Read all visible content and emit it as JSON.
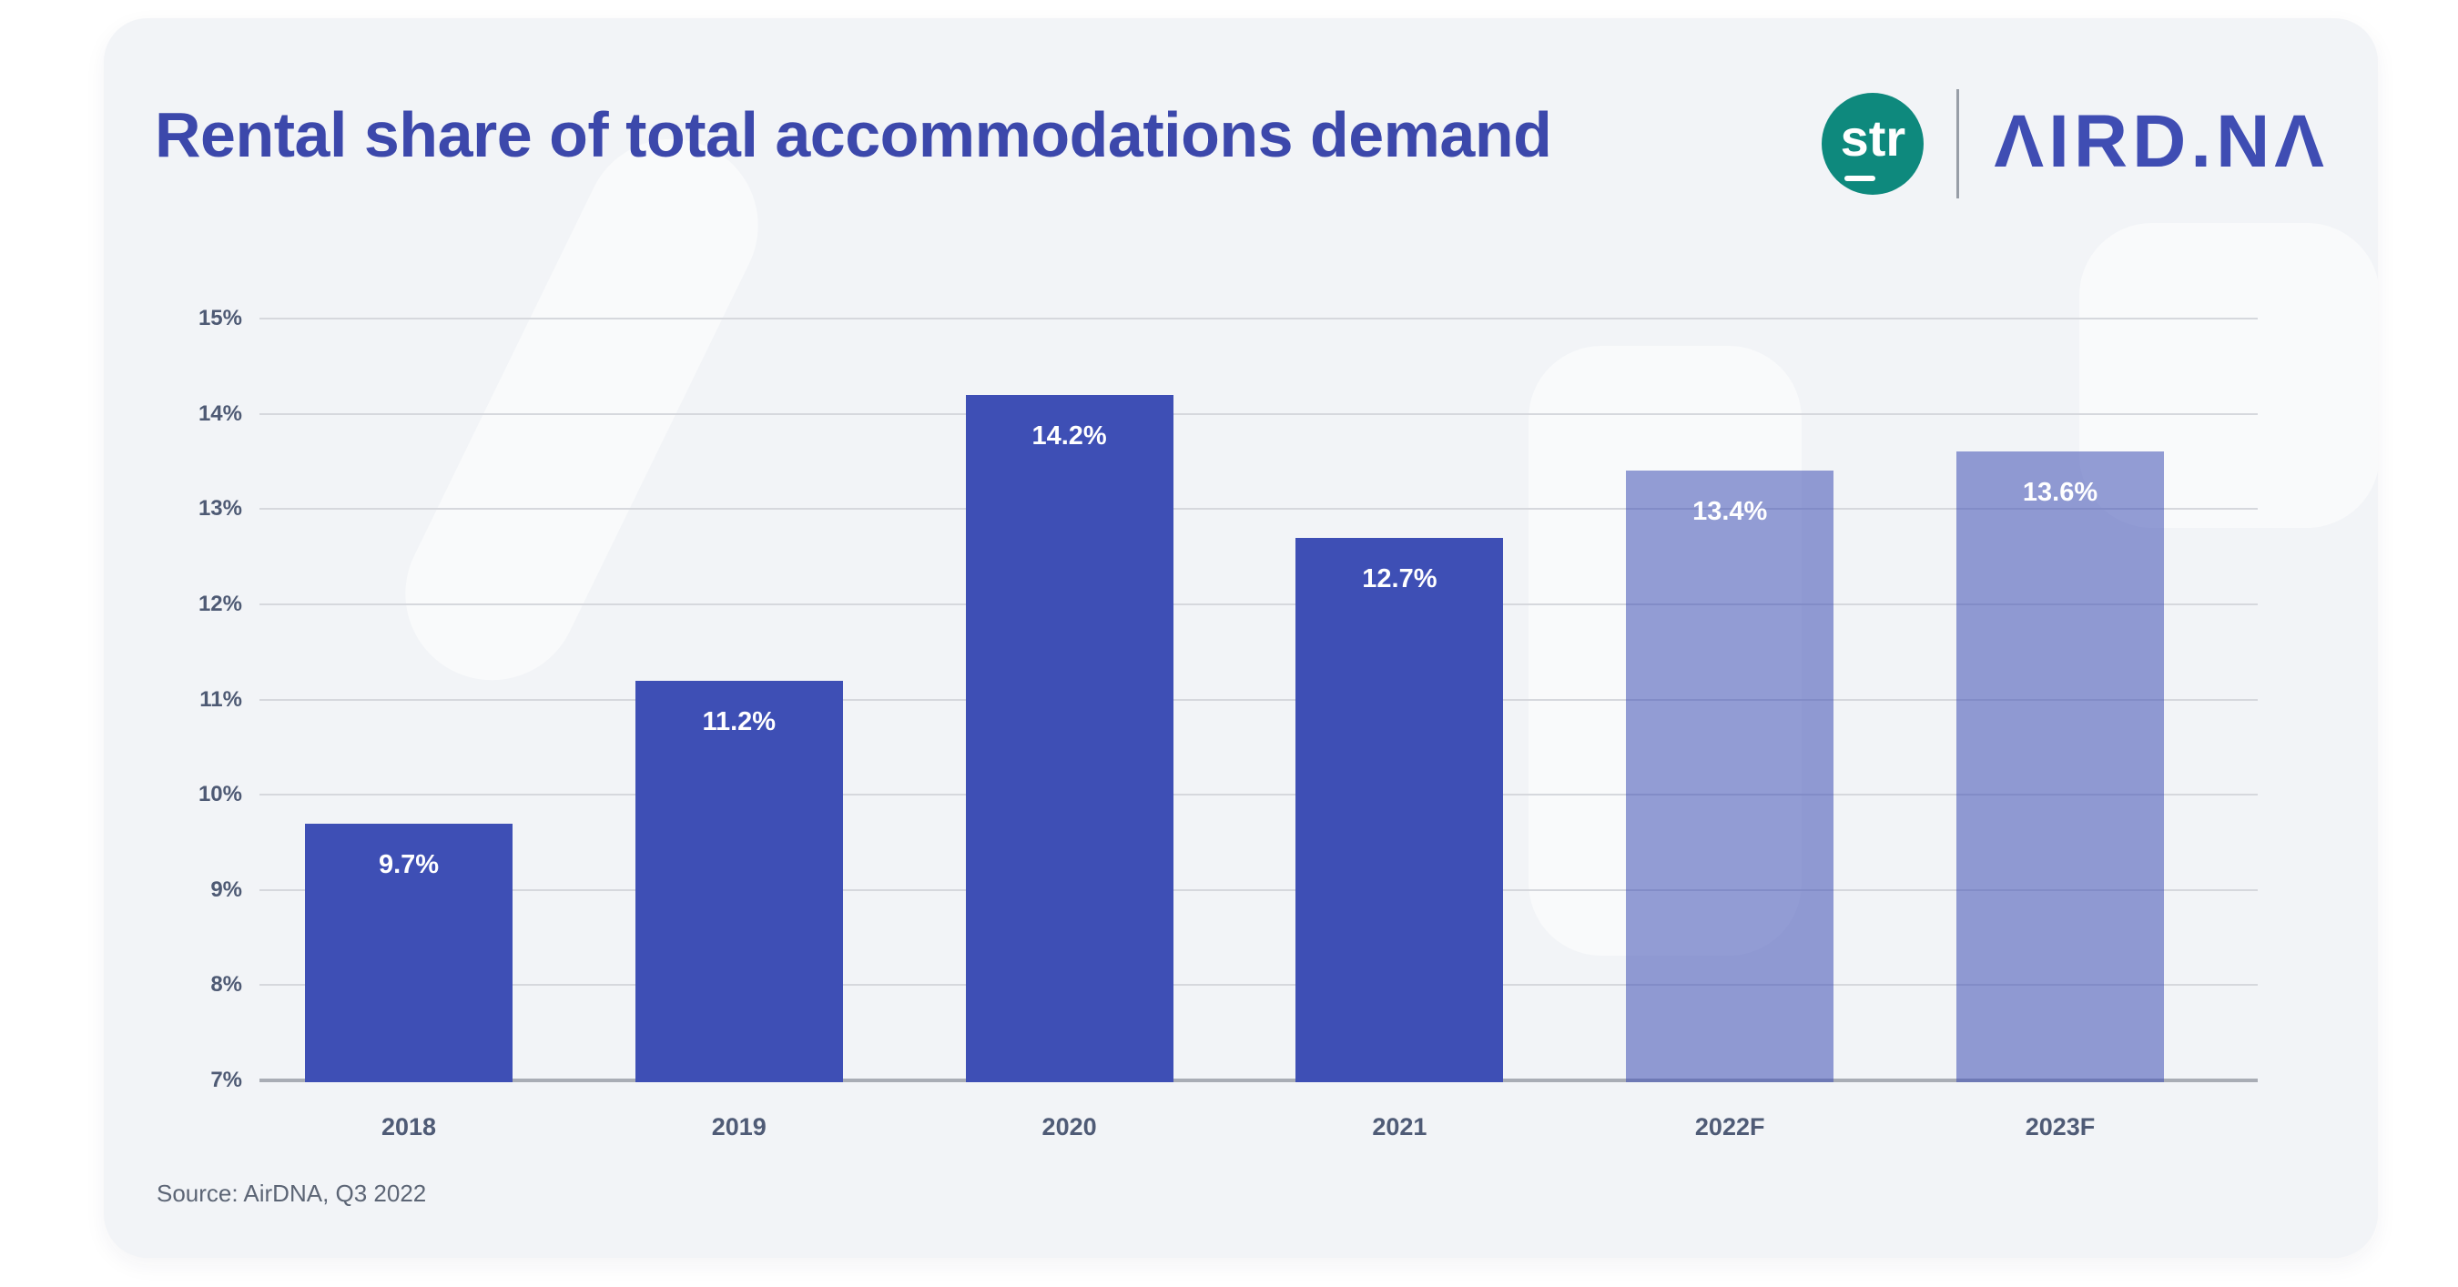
{
  "page": {
    "background": "#ffffff",
    "card_background": "#f2f4f7"
  },
  "header": {
    "title": "Rental share of total accommodations demand",
    "title_color": "#3c48ab",
    "logos": {
      "str": {
        "label": "str",
        "circle_color": "#0e897d",
        "text_color": "#ffffff"
      },
      "divider_color": "#989ea7",
      "airdna": {
        "label": "ΛIRD.NΛ",
        "color": "#3f4db3"
      }
    }
  },
  "chart_data": {
    "type": "bar",
    "title": "Rental share of total accommodations demand",
    "categories": [
      "2018",
      "2019",
      "2020",
      "2021",
      "2022F",
      "2023F"
    ],
    "values": [
      9.7,
      11.2,
      14.2,
      12.7,
      13.4,
      13.6
    ],
    "value_labels": [
      "9.7%",
      "11.2%",
      "14.2%",
      "12.7%",
      "13.4%",
      "13.6%"
    ],
    "forecast": [
      false,
      false,
      false,
      false,
      true,
      true
    ],
    "xlabel": "",
    "ylabel": "",
    "ylim": [
      7,
      15
    ],
    "ytick_step": 1,
    "ytick_labels": [
      "15%",
      "14%",
      "13%",
      "12%",
      "11%",
      "10%",
      "9%",
      "8%",
      "7%"
    ],
    "grid": true,
    "legend": "none",
    "bar_color": "#3e4fb5",
    "forecast_bar_opacity": 0.55,
    "value_label_color": "#ffffff",
    "axis_label_color": "#4e5a74",
    "gridline_color": "#d6d8dd",
    "baseline_color": "#a9adb5"
  },
  "footer": {
    "source": "Source: AirDNA, Q3 2022"
  }
}
